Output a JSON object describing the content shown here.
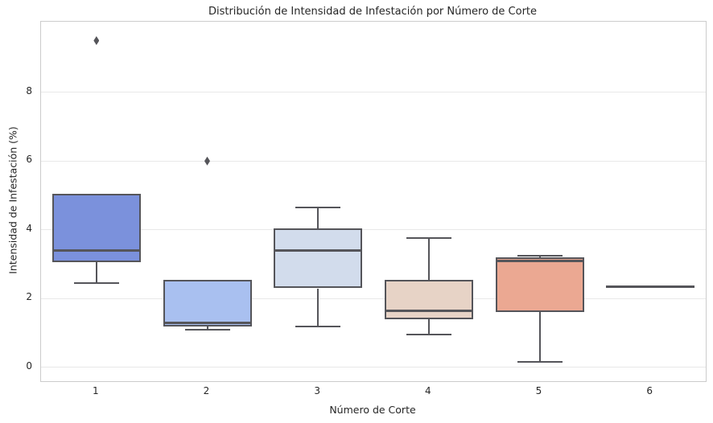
{
  "title": "Distribución de Intensidad de Infestación por Número de Corte",
  "axes": {
    "xlabel": "Número de Corte",
    "ylabel": "Intensidad de Infestación (%)"
  },
  "colors": {
    "box_edge": "#55555a",
    "grid": "#e8e8e8",
    "spine": "#cccccc",
    "text": "#262626",
    "background": "#ffffff"
  },
  "chart_data": {
    "type": "boxplot",
    "title": "Distribución de Intensidad de Infestación por Número de Corte",
    "xlabel": "Número de Corte",
    "ylabel": "Intensidad de Infestación (%)",
    "categories": [
      "1",
      "2",
      "3",
      "4",
      "5",
      "6"
    ],
    "yticks": [
      0,
      2,
      4,
      6,
      8
    ],
    "ylim": [
      -0.4,
      10.05
    ],
    "grid": "horizontal",
    "legend": "none",
    "boxes": [
      {
        "category": "1",
        "whisker_low": 2.45,
        "q1": 3.05,
        "median": 3.4,
        "q3": 5.05,
        "whisker_high": 5.05,
        "outliers": [
          9.5
        ],
        "color": "#7b91dc"
      },
      {
        "category": "2",
        "whisker_low": 1.1,
        "q1": 1.2,
        "median": 1.3,
        "q3": 2.55,
        "whisker_high": 2.55,
        "outliers": [
          6.0
        ],
        "color": "#a9c0f0"
      },
      {
        "category": "3",
        "whisker_low": 1.2,
        "q1": 2.3,
        "median": 3.4,
        "q3": 4.05,
        "whisker_high": 4.65,
        "outliers": [],
        "color": "#d2dcec"
      },
      {
        "category": "4",
        "whisker_low": 0.95,
        "q1": 1.4,
        "median": 1.65,
        "q3": 2.55,
        "whisker_high": 3.75,
        "outliers": [],
        "color": "#e7d3c6"
      },
      {
        "category": "5",
        "whisker_low": 0.15,
        "q1": 1.6,
        "median": 3.1,
        "q3": 3.2,
        "whisker_high": 3.25,
        "outliers": [],
        "color": "#eba892"
      },
      {
        "category": "6",
        "whisker_low": 2.35,
        "q1": 2.35,
        "median": 2.35,
        "q3": 2.35,
        "whisker_high": 2.35,
        "outliers": []
      }
    ]
  }
}
